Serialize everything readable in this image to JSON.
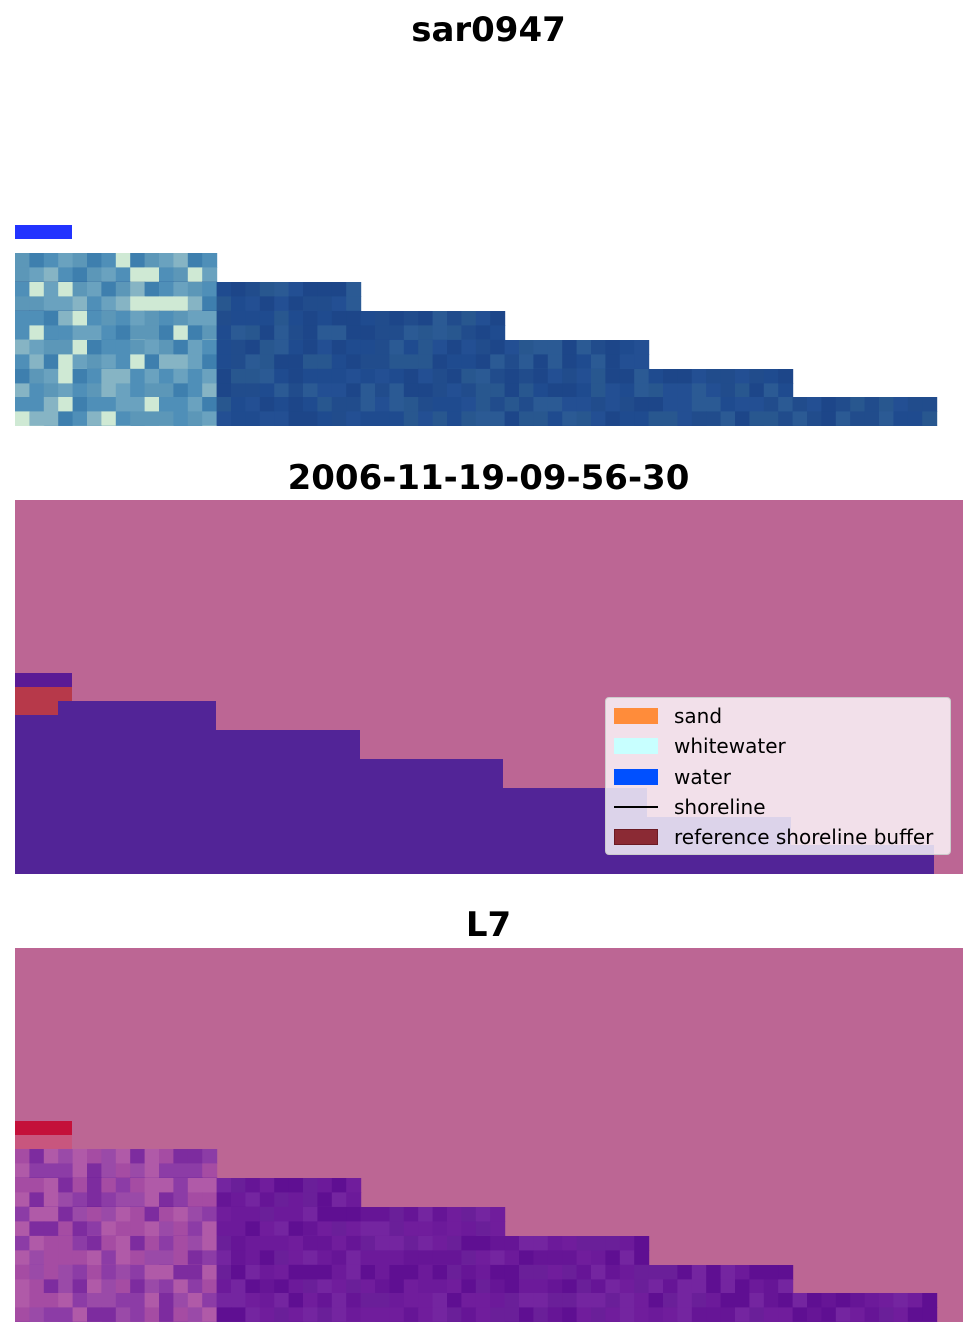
{
  "panels": [
    {
      "title": "sar0947"
    },
    {
      "title": "2006-11-19-09-56-30"
    },
    {
      "title": "L7"
    }
  ],
  "legend": {
    "items": [
      {
        "label": "sand",
        "kind": "patch",
        "color": "#ff8c3a"
      },
      {
        "label": "whitewater",
        "kind": "patch",
        "color": "#c8ffff"
      },
      {
        "label": "water",
        "kind": "patch",
        "color": "#0050ff"
      },
      {
        "label": "shoreline",
        "kind": "line",
        "color": "#000000"
      },
      {
        "label": "reference shoreline buffer",
        "kind": "patch",
        "color": "#8b2a34"
      }
    ]
  },
  "colors": {
    "background_pink": "#bc6694",
    "water_blue": "#1f4b8f",
    "classified_purple": "#522497",
    "buffer_red": "#b7394a",
    "l7_purple": "#6c1a9a"
  }
}
